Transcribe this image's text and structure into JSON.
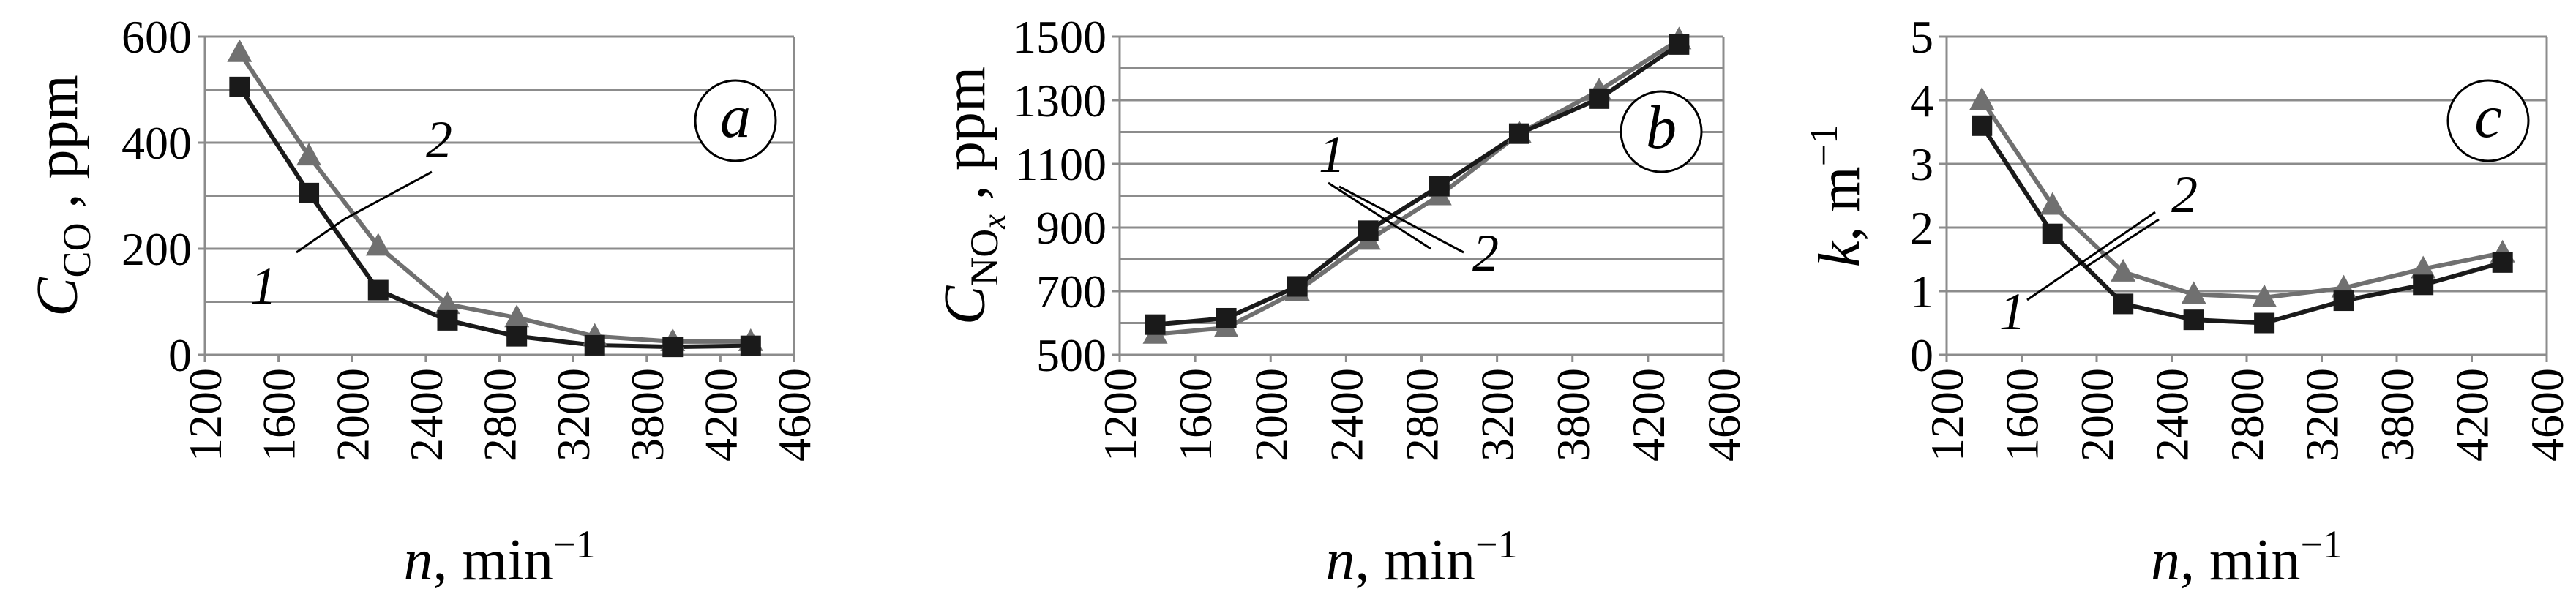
{
  "chart_data": [
    {
      "type": "line",
      "panel": "a",
      "ylabel": "C_CO , ppm",
      "ylabel_main": "C",
      "ylabel_sub": "CO",
      "ylabel_unit": ", ppm",
      "xlabel": "n, min−1",
      "xlabel_var": "n",
      "xlabel_unit": ", min",
      "xlabel_sup": "−1",
      "xlim": [
        1200,
        4600
      ],
      "ylim": [
        0,
        600
      ],
      "yticks": [
        0,
        200,
        400,
        600
      ],
      "ygrid": [
        100,
        200,
        300,
        400,
        500,
        600
      ],
      "xticks": [
        1200,
        1600,
        2000,
        2400,
        2800,
        3200,
        3800,
        4200,
        4600
      ],
      "xtick_labels": [
        "1200",
        "1600",
        "2000",
        "2400",
        "2800",
        "3200",
        "3800",
        "4200",
        "4600"
      ],
      "grid": true,
      "annotations": [
        {
          "text": "1",
          "series": "1"
        },
        {
          "text": "2",
          "series": "2"
        }
      ],
      "series": [
        {
          "name": "1",
          "marker": "square",
          "color": "#1a1a1a",
          "x": [
            1400,
            1800,
            2200,
            2600,
            3000,
            3450,
            3900,
            4350
          ],
          "y": [
            505,
            305,
            122,
            65,
            35,
            18,
            15,
            17
          ]
        },
        {
          "name": "2",
          "marker": "triangle",
          "color": "#707070",
          "x": [
            1400,
            1800,
            2200,
            2600,
            3000,
            3450,
            3900,
            4350
          ],
          "y": [
            570,
            375,
            205,
            95,
            70,
            35,
            25,
            25
          ]
        }
      ]
    },
    {
      "type": "line",
      "panel": "b",
      "ylabel": "C_NOx , ppm",
      "ylabel_main": "C",
      "ylabel_sub": "NO",
      "ylabel_subsub": "x",
      "ylabel_unit": ", ppm",
      "xlabel": "n, min−1",
      "xlabel_var": "n",
      "xlabel_unit": ", min",
      "xlabel_sup": "−1",
      "xlim": [
        1200,
        4600
      ],
      "ylim": [
        500,
        1500
      ],
      "yticks": [
        500,
        700,
        900,
        1100,
        1300,
        1500
      ],
      "ygrid": [
        600,
        700,
        800,
        900,
        1000,
        1100,
        1200,
        1300,
        1400,
        1500
      ],
      "xticks": [
        1200,
        1600,
        2000,
        2400,
        2800,
        3200,
        3800,
        4200,
        4600
      ],
      "xtick_labels": [
        "1200",
        "1600",
        "2000",
        "2400",
        "2800",
        "3200",
        "3800",
        "4200",
        "4600"
      ],
      "grid": true,
      "annotations": [
        {
          "text": "1",
          "series": "1"
        },
        {
          "text": "2",
          "series": "2"
        }
      ],
      "series": [
        {
          "name": "1",
          "marker": "square",
          "color": "#1a1a1a",
          "x": [
            1400,
            1800,
            2200,
            2600,
            3000,
            3450,
            3900,
            4350
          ],
          "y": [
            595,
            615,
            715,
            890,
            1030,
            1195,
            1305,
            1475
          ]
        },
        {
          "name": "2",
          "marker": "triangle",
          "color": "#707070",
          "x": [
            1400,
            1800,
            2200,
            2600,
            3000,
            3450,
            3900,
            4350
          ],
          "y": [
            565,
            585,
            700,
            860,
            1000,
            1195,
            1330,
            1490
          ]
        }
      ]
    },
    {
      "type": "line",
      "panel": "c",
      "ylabel": "k, m−1",
      "ylabel_main": "k",
      "ylabel_unit": ", m",
      "ylabel_sup": "−1",
      "xlabel": "n, min−1",
      "xlabel_var": "n",
      "xlabel_unit": ", min",
      "xlabel_sup": "−1",
      "xlim": [
        1200,
        4600
      ],
      "ylim": [
        0,
        5
      ],
      "yticks": [
        0,
        1,
        2,
        3,
        4,
        5
      ],
      "ygrid": [
        1,
        2,
        3,
        4,
        5
      ],
      "xticks": [
        1200,
        1600,
        2000,
        2400,
        2800,
        3200,
        3800,
        4200,
        4600
      ],
      "xtick_labels": [
        "1200",
        "1600",
        "2000",
        "2400",
        "2800",
        "3200",
        "3800",
        "4200",
        "4600"
      ],
      "grid": true,
      "annotations": [
        {
          "text": "1",
          "series": "1"
        },
        {
          "text": "2",
          "series": "2"
        }
      ],
      "series": [
        {
          "name": "1",
          "marker": "square",
          "color": "#1a1a1a",
          "x": [
            1400,
            1800,
            2200,
            2600,
            3000,
            3450,
            3900,
            4350
          ],
          "y": [
            3.6,
            1.9,
            0.8,
            0.55,
            0.5,
            0.85,
            1.1,
            1.45
          ]
        },
        {
          "name": "2",
          "marker": "triangle",
          "color": "#707070",
          "x": [
            1400,
            1800,
            2200,
            2600,
            3000,
            3450,
            3900,
            4350
          ],
          "y": [
            4.0,
            2.35,
            1.3,
            0.95,
            0.9,
            1.05,
            1.35,
            1.6
          ]
        }
      ]
    }
  ]
}
